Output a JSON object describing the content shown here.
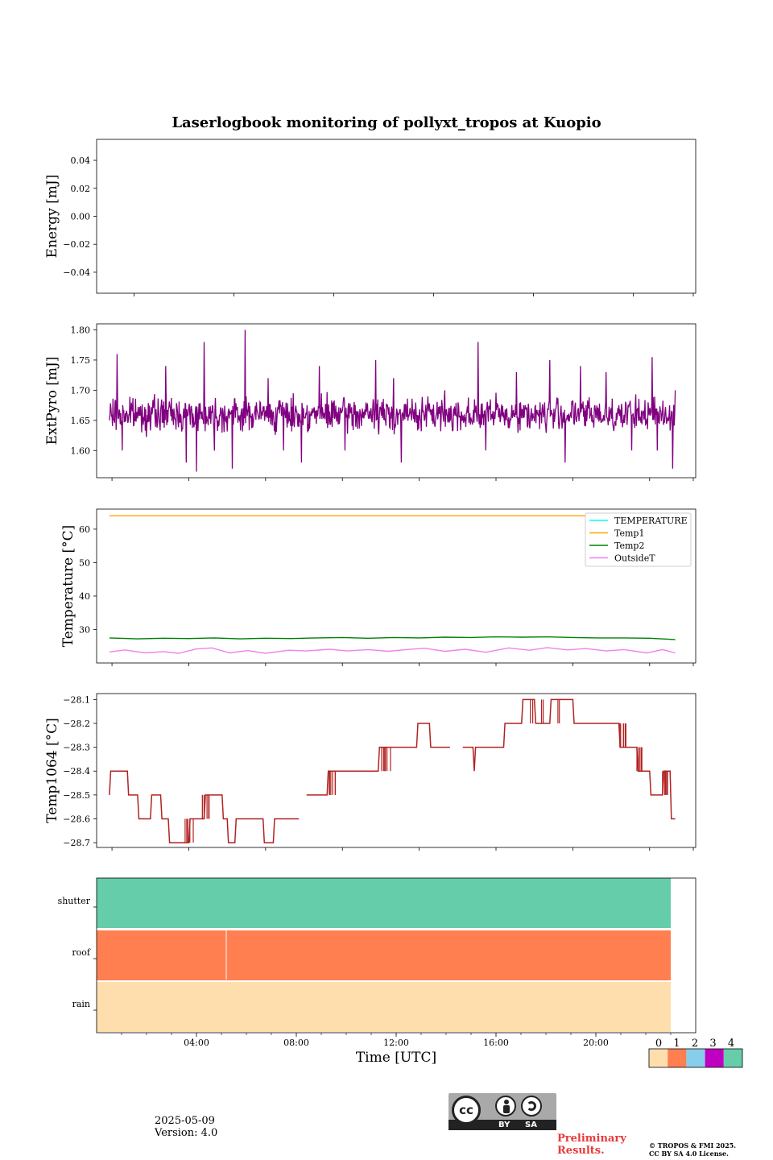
{
  "figure": {
    "title": "Laserlogbook monitoring of pollyxt_tropos at Kuopio",
    "date": "2025-05-09",
    "version": "Version: 4.0",
    "preliminary_line1": "Preliminary",
    "preliminary_line2": "Results.",
    "copyright_line1": "© TROPOS & FMI 2025.",
    "copyright_line2": "CC BY SA 4.0 License.",
    "license_badge": {
      "by": "BY",
      "sa": "SA",
      "icon": "cc-by-sa-icon"
    }
  },
  "chart_data": [
    {
      "type": "line",
      "ylabel": "Energy [mJ]",
      "ylim": [
        -0.055,
        0.055
      ],
      "yticks": [
        -0.04,
        -0.02,
        0.0,
        0.02,
        0.04
      ],
      "ytick_labels": [
        "−0.04",
        "−0.02",
        "0.00",
        "0.02",
        "0.04"
      ],
      "xlim_hours": [
        -0.5,
        23.5
      ],
      "series": []
    },
    {
      "type": "line",
      "ylabel": "ExtPyro [mJ]",
      "ylim": [
        1.555,
        1.81
      ],
      "yticks": [
        1.6,
        1.65,
        1.7,
        1.75,
        1.8
      ],
      "ytick_labels": [
        "1.60",
        "1.65",
        "1.70",
        "1.75",
        "1.80"
      ],
      "xlim_hours": [
        0.4,
        23.8
      ],
      "color": "#800080",
      "series": [
        {
          "summary": "noisy signal around 1.66 mJ from 00:50 to 23:00 UTC",
          "x_range": [
            0.9,
            23.0
          ],
          "mean": 1.66,
          "spread": 0.025,
          "points": [
            [
              0.9,
              1.65
            ],
            [
              1.2,
              1.76
            ],
            [
              1.4,
              1.6
            ],
            [
              3.1,
              1.74
            ],
            [
              3.9,
              1.58
            ],
            [
              4.3,
              1.565
            ],
            [
              4.6,
              1.78
            ],
            [
              5.0,
              1.6
            ],
            [
              5.7,
              1.57
            ],
            [
              6.2,
              1.8
            ],
            [
              7.1,
              1.72
            ],
            [
              7.7,
              1.6
            ],
            [
              8.4,
              1.58
            ],
            [
              9.1,
              1.74
            ],
            [
              10.1,
              1.6
            ],
            [
              11.3,
              1.75
            ],
            [
              12.0,
              1.72
            ],
            [
              12.3,
              1.58
            ],
            [
              14.0,
              1.7
            ],
            [
              15.3,
              1.78
            ],
            [
              15.6,
              1.6
            ],
            [
              16.8,
              1.73
            ],
            [
              18.1,
              1.75
            ],
            [
              18.7,
              1.58
            ],
            [
              19.3,
              1.74
            ],
            [
              20.3,
              1.73
            ],
            [
              21.3,
              1.6
            ],
            [
              22.1,
              1.755
            ],
            [
              22.3,
              1.6
            ],
            [
              22.9,
              1.57
            ],
            [
              23.0,
              1.7
            ]
          ]
        }
      ]
    },
    {
      "type": "line",
      "ylabel": "Temperature [°C]",
      "ylim": [
        20,
        66
      ],
      "yticks": [
        30,
        40,
        50,
        60
      ],
      "ytick_labels": [
        "30",
        "40",
        "50",
        "60"
      ],
      "xlim_hours": [
        0.4,
        23.8
      ],
      "legend_position": "top-right",
      "series": [
        {
          "name": "TEMPERATURE",
          "color": "#00ffff",
          "points": []
        },
        {
          "name": "Temp1",
          "color": "#ffa500",
          "points": [
            [
              0.9,
              64.0
            ],
            [
              23.0,
              64.0
            ]
          ]
        },
        {
          "name": "Temp2",
          "color": "#008000",
          "points": [
            [
              0.9,
              27.5
            ],
            [
              2.0,
              27.2
            ],
            [
              3.0,
              27.4
            ],
            [
              4.0,
              27.3
            ],
            [
              5.0,
              27.5
            ],
            [
              6.0,
              27.2
            ],
            [
              7.0,
              27.4
            ],
            [
              8.0,
              27.3
            ],
            [
              9.0,
              27.5
            ],
            [
              10.0,
              27.6
            ],
            [
              11.0,
              27.4
            ],
            [
              12.0,
              27.6
            ],
            [
              13.0,
              27.5
            ],
            [
              14.0,
              27.7
            ],
            [
              15.0,
              27.6
            ],
            [
              16.0,
              27.8
            ],
            [
              17.0,
              27.7
            ],
            [
              18.0,
              27.8
            ],
            [
              19.0,
              27.6
            ],
            [
              20.0,
              27.5
            ],
            [
              21.0,
              27.5
            ],
            [
              22.0,
              27.4
            ],
            [
              23.0,
              27.0
            ]
          ]
        },
        {
          "name": "OutsideT",
          "color": "#ee82ee",
          "points": [
            [
              0.9,
              23.3
            ],
            [
              1.5,
              23.9
            ],
            [
              2.3,
              23.0
            ],
            [
              3.0,
              23.4
            ],
            [
              3.6,
              22.9
            ],
            [
              4.3,
              24.2
            ],
            [
              4.9,
              24.5
            ],
            [
              5.6,
              23.0
            ],
            [
              6.3,
              23.7
            ],
            [
              7.0,
              22.9
            ],
            [
              7.9,
              23.8
            ],
            [
              8.6,
              23.6
            ],
            [
              9.5,
              24.1
            ],
            [
              10.2,
              23.6
            ],
            [
              11.0,
              24.0
            ],
            [
              11.8,
              23.5
            ],
            [
              12.5,
              24.0
            ],
            [
              13.2,
              24.4
            ],
            [
              14.0,
              23.5
            ],
            [
              14.8,
              24.1
            ],
            [
              15.6,
              23.2
            ],
            [
              16.5,
              24.5
            ],
            [
              17.3,
              23.8
            ],
            [
              18.0,
              24.6
            ],
            [
              18.8,
              23.9
            ],
            [
              19.5,
              24.3
            ],
            [
              20.3,
              23.6
            ],
            [
              21.0,
              24.0
            ],
            [
              21.9,
              23.0
            ],
            [
              22.5,
              24.0
            ],
            [
              23.0,
              23.0
            ]
          ]
        }
      ]
    },
    {
      "type": "line",
      "ylabel": "Temp1064 [°C]",
      "ylim": [
        -28.72,
        -28.075
      ],
      "yticks": [
        -28.7,
        -28.6,
        -28.5,
        -28.4,
        -28.3,
        -28.2,
        -28.1
      ],
      "ytick_labels": [
        "−28.7",
        "−28.6",
        "−28.5",
        "−28.4",
        "−28.3",
        "−28.2",
        "−28.1"
      ],
      "xlim_hours": [
        0.4,
        23.8
      ],
      "color": "#b22222",
      "series": [
        {
          "summary": "stepwise signal quantized to 0.1 °C",
          "points": [
            [
              0.9,
              -28.5
            ],
            [
              0.95,
              -28.4
            ],
            [
              1.6,
              -28.4
            ],
            [
              1.65,
              -28.5
            ],
            [
              2.0,
              -28.5
            ],
            [
              2.05,
              -28.6
            ],
            [
              2.5,
              -28.6
            ],
            [
              2.55,
              -28.5
            ],
            [
              2.9,
              -28.5
            ],
            [
              2.95,
              -28.6
            ],
            [
              3.2,
              -28.6
            ],
            [
              3.25,
              -28.7
            ],
            [
              4.0,
              -28.7
            ],
            [
              4.05,
              -28.6
            ],
            [
              4.6,
              -28.6
            ],
            [
              4.65,
              -28.5
            ],
            [
              5.3,
              -28.5
            ],
            [
              5.35,
              -28.6
            ],
            [
              5.5,
              -28.6
            ],
            [
              5.55,
              -28.7
            ],
            [
              5.8,
              -28.7
            ],
            [
              5.85,
              -28.6
            ],
            [
              6.9,
              -28.6
            ],
            [
              6.95,
              -28.7
            ],
            [
              7.3,
              -28.7
            ],
            [
              7.35,
              -28.6
            ],
            [
              8.2,
              -28.6
            ],
            [
              8.3,
              -28.6
            ],
            [
              null,
              null
            ],
            [
              8.6,
              -28.5
            ],
            [
              9.4,
              -28.5
            ],
            [
              9.45,
              -28.4
            ],
            [
              11.4,
              -28.4
            ],
            [
              11.45,
              -28.3
            ],
            [
              12.9,
              -28.3
            ],
            [
              12.95,
              -28.2
            ],
            [
              13.4,
              -28.2
            ],
            [
              13.45,
              -28.3
            ],
            [
              14.2,
              -28.3
            ],
            [
              null,
              null
            ],
            [
              14.7,
              -28.3
            ],
            [
              15.1,
              -28.3
            ],
            [
              15.15,
              -28.4
            ],
            [
              15.2,
              -28.3
            ],
            [
              16.3,
              -28.3
            ],
            [
              16.35,
              -28.2
            ],
            [
              17.0,
              -28.2
            ],
            [
              17.05,
              -28.1
            ],
            [
              17.5,
              -28.1
            ],
            [
              17.55,
              -28.2
            ],
            [
              18.1,
              -28.2
            ],
            [
              18.15,
              -28.1
            ],
            [
              19.0,
              -28.1
            ],
            [
              19.05,
              -28.2
            ],
            [
              20.8,
              -28.2
            ],
            [
              20.85,
              -28.3
            ],
            [
              21.5,
              -28.3
            ],
            [
              21.55,
              -28.4
            ],
            [
              22.0,
              -28.4
            ],
            [
              22.05,
              -28.5
            ],
            [
              22.5,
              -28.5
            ],
            [
              22.55,
              -28.4
            ],
            [
              22.8,
              -28.4
            ],
            [
              22.85,
              -28.6
            ],
            [
              23.0,
              -28.6
            ]
          ]
        }
      ]
    },
    {
      "type": "heatmap",
      "xlabel": "Time [UTC]",
      "xlim_hours": [
        0,
        24
      ],
      "xticks": [
        4,
        8,
        12,
        16,
        20
      ],
      "xtick_labels": [
        "04:00",
        "08:00",
        "12:00",
        "16:00",
        "20:00"
      ],
      "rows": [
        "shutter",
        "roof",
        "rain"
      ],
      "cells": [
        {
          "row": "shutter",
          "from": 0.0,
          "to": 23.0,
          "value": 4
        },
        {
          "row": "roof",
          "from": 0.0,
          "to": 23.0,
          "value": 1
        },
        {
          "row": "rain",
          "from": 0.0,
          "to": 23.0,
          "value": 0
        }
      ],
      "colorbar": {
        "labels": [
          "0",
          "1",
          "2",
          "3",
          "4"
        ],
        "colors": [
          "#ffdead",
          "#ff7f50",
          "#87ceeb",
          "#c000c0",
          "#66cdaa"
        ]
      }
    }
  ]
}
